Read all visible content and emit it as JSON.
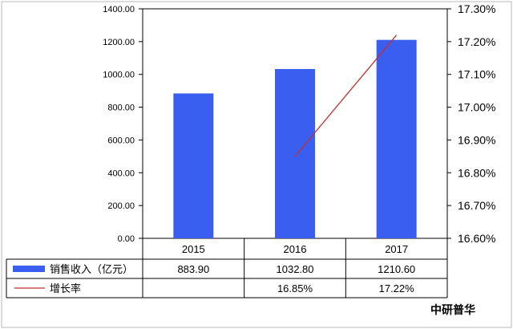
{
  "chart_data": {
    "type": "bar",
    "categories": [
      "2015",
      "2016",
      "2017"
    ],
    "left_axis": {
      "min": 0,
      "max": 1400,
      "step": 200,
      "tick_labels": [
        "0.00",
        "200.00",
        "400.00",
        "600.00",
        "800.00",
        "1000.00",
        "1200.00",
        "1400.00"
      ]
    },
    "right_axis": {
      "min": 16.6,
      "max": 17.3,
      "step": 0.1,
      "tick_labels": [
        "16.60%",
        "16.70%",
        "16.80%",
        "16.90%",
        "17.00%",
        "17.10%",
        "17.20%",
        "17.30%"
      ]
    },
    "series": [
      {
        "name": "销售收入（亿元）",
        "type": "bar",
        "axis": "left",
        "values": [
          883.9,
          1032.8,
          1210.6
        ],
        "labels": [
          "883.90",
          "1032.80",
          "1210.60"
        ]
      },
      {
        "name": "增长率",
        "type": "line",
        "axis": "right",
        "values": [
          null,
          16.85,
          17.22
        ],
        "labels": [
          "",
          "16.85%",
          "17.22%"
        ]
      }
    ],
    "grid": false,
    "legend": "data-table"
  },
  "colors": {
    "bar": "#3a5ff0",
    "line": "#c0302a"
  },
  "watermark": "中研普华"
}
